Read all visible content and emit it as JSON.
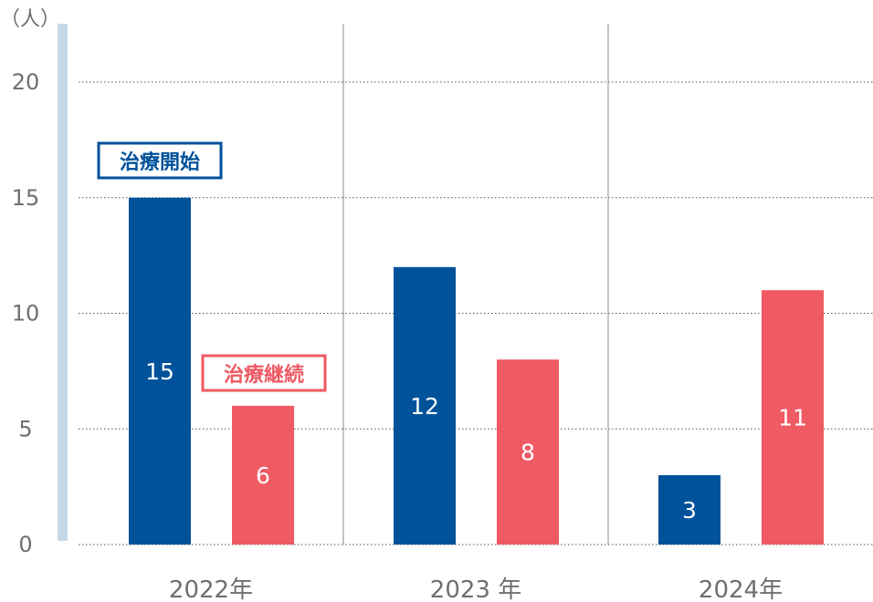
{
  "chart_data": {
    "type": "bar",
    "unit_label": "（人）",
    "categories": [
      "2022年",
      "2023 年",
      "2024年"
    ],
    "series": [
      {
        "name": "治療開始",
        "color": "#00529b",
        "values": [
          15,
          12,
          3
        ]
      },
      {
        "name": "治療継続",
        "color": "#ef5a63",
        "values": [
          6,
          8,
          11
        ]
      }
    ],
    "yticks": [
      0,
      5,
      10,
      15,
      20
    ],
    "ylim": [
      0,
      20
    ],
    "grid": true,
    "axis_color": "#c5d9e8",
    "grid_color": "#555555",
    "divider_color": "#8a8a8a",
    "text_color": "#6f6f6f"
  }
}
